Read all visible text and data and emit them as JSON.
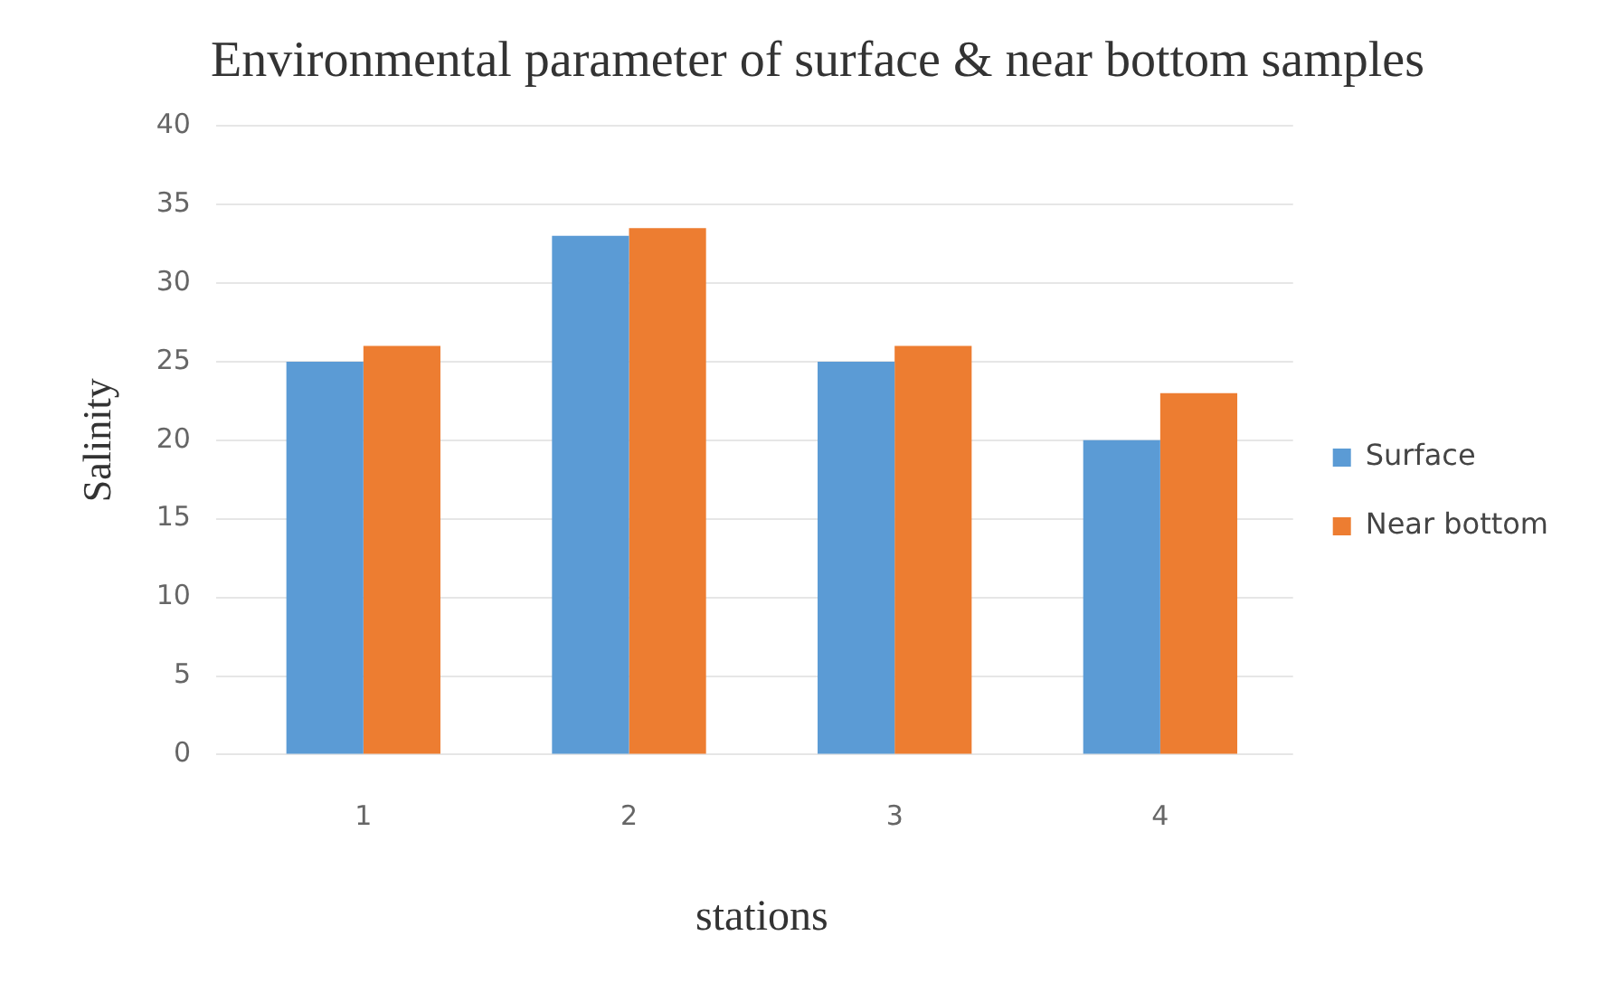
{
  "chart_data": {
    "type": "bar",
    "title": "Environmental parameter of surface & near bottom samples",
    "xlabel": "stations",
    "ylabel": "Salinity",
    "categories": [
      "1",
      "2",
      "3",
      "4"
    ],
    "series": [
      {
        "name": "Surface",
        "color": "#5b9bd5",
        "values": [
          25,
          33,
          25,
          20
        ]
      },
      {
        "name": "Near bottom",
        "color": "#ed7d31",
        "values": [
          26,
          33.5,
          26,
          23
        ]
      }
    ],
    "ylim": [
      0,
      40
    ],
    "yticks": [
      0,
      5,
      10,
      15,
      20,
      25,
      30,
      35,
      40
    ],
    "grid": "y",
    "legend": "right"
  }
}
